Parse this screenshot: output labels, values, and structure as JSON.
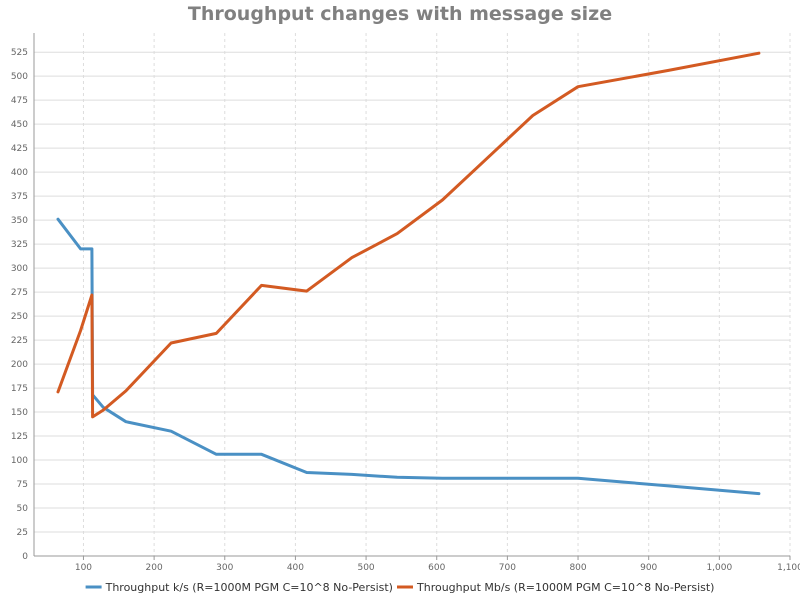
{
  "chart_data": {
    "type": "line",
    "title": "Throughput changes with message size",
    "xlabel": "",
    "ylabel": "",
    "xlim": [
      30,
      1100
    ],
    "ylim": [
      0,
      545
    ],
    "x_ticks": [
      100,
      200,
      300,
      400,
      500,
      600,
      700,
      800,
      900,
      1000,
      1100
    ],
    "x_tick_labels": [
      "100",
      "200",
      "300",
      "400",
      "500",
      "600",
      "700",
      "800",
      "900",
      "1,000",
      "1,100"
    ],
    "y_ticks": [
      0,
      25,
      50,
      75,
      100,
      125,
      150,
      175,
      200,
      225,
      250,
      275,
      300,
      325,
      350,
      375,
      400,
      425,
      450,
      475,
      500,
      525
    ],
    "y_tick_labels": [
      "0",
      "25",
      "50",
      "75",
      "100",
      "125",
      "150",
      "175",
      "200",
      "225",
      "250",
      "275",
      "300",
      "325",
      "350",
      "375",
      "400",
      "425",
      "450",
      "475",
      "500",
      "525"
    ],
    "grid": "horizontal solid, vertical dashed",
    "legend_position": "bottom",
    "series": [
      {
        "name": "Throughput k/s (R=1000M PGM C=10^8 No-Persist)",
        "color": "#4a90c4",
        "points": [
          [
            64,
            351
          ],
          [
            96,
            320
          ],
          [
            105,
            320
          ],
          [
            112,
            320
          ],
          [
            113,
            168
          ],
          [
            128,
            155
          ],
          [
            160,
            140
          ],
          [
            224,
            130
          ],
          [
            288,
            106
          ],
          [
            352,
            106
          ],
          [
            416,
            87
          ],
          [
            480,
            85
          ],
          [
            544,
            82
          ],
          [
            608,
            81
          ],
          [
            672,
            81
          ],
          [
            736,
            81
          ],
          [
            800,
            81
          ],
          [
            928,
            73
          ],
          [
            1056,
            65
          ]
        ]
      },
      {
        "name": "Throughput Mb/s (R=1000M PGM C=10^8 No-Persist)",
        "color": "#d35a22",
        "points": [
          [
            64,
            171
          ],
          [
            96,
            235
          ],
          [
            112,
            272
          ],
          [
            113,
            145
          ],
          [
            128,
            152
          ],
          [
            160,
            172
          ],
          [
            224,
            222
          ],
          [
            288,
            232
          ],
          [
            352,
            282
          ],
          [
            416,
            276
          ],
          [
            480,
            311
          ],
          [
            544,
            336
          ],
          [
            608,
            371
          ],
          [
            672,
            415
          ],
          [
            736,
            459
          ],
          [
            800,
            489
          ],
          [
            928,
            506
          ],
          [
            1056,
            524
          ]
        ]
      }
    ]
  }
}
